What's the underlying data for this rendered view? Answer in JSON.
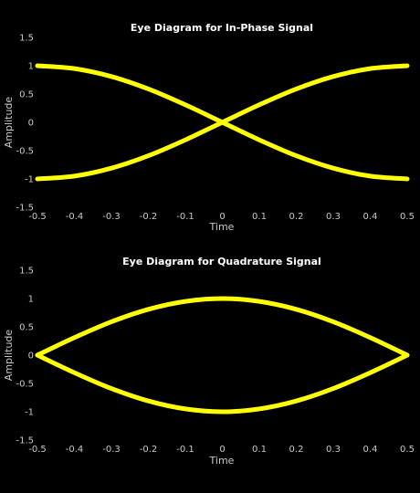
{
  "chart_data": [
    {
      "type": "line",
      "title": "Eye Diagram for In-Phase Signal",
      "xlabel": "Time",
      "ylabel": "Amplitude",
      "xlim": [
        -0.5,
        0.5
      ],
      "ylim": [
        -1.5,
        1.5
      ],
      "xticks": [
        -0.5,
        -0.4,
        -0.3,
        -0.2,
        -0.1,
        0,
        0.1,
        0.2,
        0.3,
        0.4,
        0.5
      ],
      "xtick_labels": [
        "-0.5",
        "-0.4",
        "-0.3",
        "-0.2",
        "-0.1",
        "0",
        "0.1",
        "0.2",
        "0.3",
        "0.4",
        "0.5"
      ],
      "yticks": [
        -1.5,
        -1,
        -0.5,
        0,
        0.5,
        1,
        1.5
      ],
      "ytick_labels": [
        "-1.5",
        "-1",
        "-0.5",
        "0",
        "0.5",
        "1",
        "1.5"
      ],
      "color": "#ffff00",
      "traces": [
        {
          "x": [
            -0.5,
            -0.4,
            -0.3,
            -0.2,
            -0.1,
            0,
            0.1,
            0.2,
            0.3,
            0.4,
            0.5
          ],
          "y": [
            1.0,
            0.95,
            0.81,
            0.59,
            0.31,
            0.0,
            -0.31,
            -0.59,
            -0.81,
            -0.95,
            -1.0
          ]
        },
        {
          "x": [
            -0.5,
            -0.4,
            -0.3,
            -0.2,
            -0.1,
            0,
            0.1,
            0.2,
            0.3,
            0.4,
            0.5
          ],
          "y": [
            -1.0,
            -0.95,
            -0.81,
            -0.59,
            -0.31,
            0.0,
            0.31,
            0.59,
            0.81,
            0.95,
            1.0
          ]
        }
      ]
    },
    {
      "type": "line",
      "title": "Eye Diagram for Quadrature Signal",
      "xlabel": "Time",
      "ylabel": "Amplitude",
      "xlim": [
        -0.5,
        0.5
      ],
      "ylim": [
        -1.5,
        1.5
      ],
      "xticks": [
        -0.5,
        -0.4,
        -0.3,
        -0.2,
        -0.1,
        0,
        0.1,
        0.2,
        0.3,
        0.4,
        0.5
      ],
      "xtick_labels": [
        "-0.5",
        "-0.4",
        "-0.3",
        "-0.2",
        "-0.1",
        "0",
        "0.1",
        "0.2",
        "0.3",
        "0.4",
        "0.5"
      ],
      "yticks": [
        -1.5,
        -1,
        -0.5,
        0,
        0.5,
        1,
        1.5
      ],
      "ytick_labels": [
        "-1.5",
        "-1",
        "-0.5",
        "0",
        "0.5",
        "1",
        "1.5"
      ],
      "color": "#ffff00",
      "traces": [
        {
          "x": [
            -0.5,
            -0.4,
            -0.3,
            -0.2,
            -0.1,
            0,
            0.1,
            0.2,
            0.3,
            0.4,
            0.5
          ],
          "y": [
            0.0,
            0.31,
            0.59,
            0.81,
            0.95,
            1.0,
            0.95,
            0.81,
            0.59,
            0.31,
            0.0
          ]
        },
        {
          "x": [
            -0.5,
            -0.4,
            -0.3,
            -0.2,
            -0.1,
            0,
            0.1,
            0.2,
            0.3,
            0.4,
            0.5
          ],
          "y": [
            0.0,
            -0.31,
            -0.59,
            -0.81,
            -0.95,
            -1.0,
            -0.95,
            -0.81,
            -0.59,
            -0.31,
            0.0
          ]
        }
      ]
    }
  ]
}
